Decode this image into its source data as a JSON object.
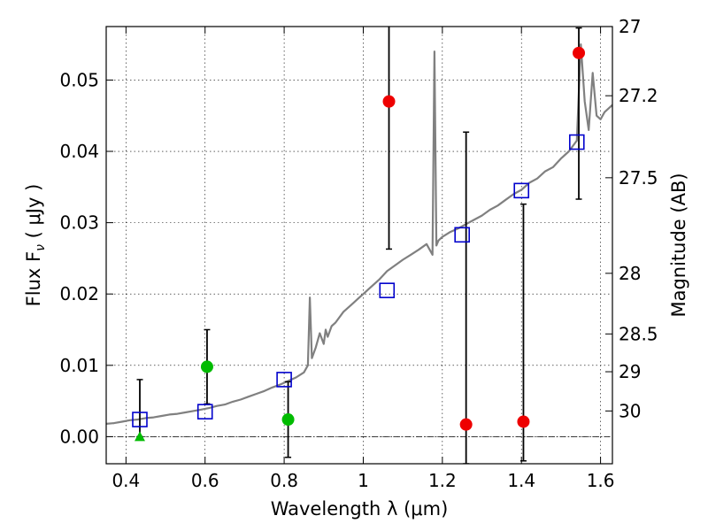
{
  "chart_data": {
    "type": "scatter",
    "xlabel": "Wavelength  λ (μm)",
    "ylabel": "Flux  F",
    "ylabel_sub": "ν",
    "ylabel_unit": " ( μJy )",
    "y2label": "Magnitude (AB)",
    "xlim": [
      0.35,
      1.63
    ],
    "ylim": [
      -0.0038,
      0.0575
    ],
    "grid": true,
    "x_ticks": [
      0.4,
      0.6,
      0.8,
      1.0,
      1.2,
      1.4,
      1.6
    ],
    "x_tick_labels": [
      "0.4",
      "0.6",
      "0.8",
      "1",
      "1.2",
      "1.4",
      "1.6"
    ],
    "y_ticks": [
      0.0,
      0.01,
      0.02,
      0.03,
      0.04,
      0.05
    ],
    "y_tick_labels": [
      "0.00",
      "0.01",
      "0.02",
      "0.03",
      "0.04",
      "0.05"
    ],
    "y2_ticks": [
      {
        "label": "27",
        "flux": 0.0575
      },
      {
        "label": "27.2",
        "flux": 0.0478
      },
      {
        "label": "27.5",
        "flux": 0.0363
      },
      {
        "label": "28",
        "flux": 0.0229
      },
      {
        "label": "28.5",
        "flux": 0.0144
      },
      {
        "label": "29",
        "flux": 0.0091
      },
      {
        "label": "30",
        "flux": 0.0036
      }
    ],
    "series": [
      {
        "kind": "model_spectrum",
        "color": "#808080",
        "x": [
          0.35,
          0.37,
          0.39,
          0.41,
          0.43,
          0.45,
          0.47,
          0.49,
          0.51,
          0.53,
          0.55,
          0.57,
          0.59,
          0.61,
          0.63,
          0.65,
          0.67,
          0.69,
          0.71,
          0.73,
          0.75,
          0.77,
          0.79,
          0.81,
          0.83,
          0.85,
          0.86,
          0.865,
          0.87,
          0.88,
          0.89,
          0.9,
          0.905,
          0.91,
          0.92,
          0.93,
          0.95,
          0.97,
          0.99,
          1.0,
          1.02,
          1.04,
          1.06,
          1.08,
          1.1,
          1.12,
          1.14,
          1.16,
          1.175,
          1.18,
          1.185,
          1.19,
          1.2,
          1.22,
          1.24,
          1.26,
          1.28,
          1.3,
          1.32,
          1.34,
          1.36,
          1.38,
          1.4,
          1.42,
          1.44,
          1.46,
          1.48,
          1.5,
          1.52,
          1.54,
          1.55,
          1.56,
          1.57,
          1.58,
          1.59,
          1.6,
          1.61,
          1.62,
          1.63
        ],
        "y": [
          0.0018,
          0.0019,
          0.0021,
          0.0023,
          0.0024,
          0.0026,
          0.0027,
          0.0029,
          0.0031,
          0.0032,
          0.0034,
          0.0036,
          0.0038,
          0.004,
          0.0043,
          0.0045,
          0.0049,
          0.0052,
          0.0056,
          0.006,
          0.0064,
          0.0069,
          0.0073,
          0.0078,
          0.0083,
          0.009,
          0.01,
          0.0195,
          0.011,
          0.0125,
          0.0145,
          0.013,
          0.015,
          0.014,
          0.0155,
          0.016,
          0.0175,
          0.0185,
          0.0195,
          0.02,
          0.021,
          0.022,
          0.0232,
          0.024,
          0.0248,
          0.0255,
          0.0262,
          0.027,
          0.0255,
          0.054,
          0.0268,
          0.0275,
          0.028,
          0.0287,
          0.0292,
          0.0298,
          0.0304,
          0.031,
          0.0318,
          0.0324,
          0.0332,
          0.034,
          0.0346,
          0.0356,
          0.0362,
          0.0372,
          0.0378,
          0.039,
          0.04,
          0.0415,
          0.055,
          0.047,
          0.043,
          0.051,
          0.045,
          0.0445,
          0.0455,
          0.046,
          0.0465
        ]
      },
      {
        "kind": "model_points",
        "marker": "open-square",
        "color": "#0000cc",
        "x": [
          0.435,
          0.6,
          0.8,
          1.06,
          1.25,
          1.4,
          1.54
        ],
        "y": [
          0.0024,
          0.0035,
          0.008,
          0.0205,
          0.0283,
          0.0345,
          0.0413
        ]
      },
      {
        "kind": "detections",
        "marker": "circle",
        "color": "#00bb00",
        "x": [
          0.605,
          0.81
        ],
        "y": [
          0.0098,
          0.0024
        ],
        "err_low": [
          0.0052,
          0.0053
        ],
        "err_high": [
          0.0052,
          0.0053
        ]
      },
      {
        "kind": "upper_limit",
        "marker": "triangle",
        "color": "#00bb00",
        "x": [
          0.435
        ],
        "y": [
          0.0
        ],
        "err_low": [
          0.0
        ],
        "err_high": [
          0.008
        ]
      },
      {
        "kind": "low_significance",
        "marker": "circle",
        "color": "#ee0000",
        "x": [
          1.065,
          1.26,
          1.405,
          1.545
        ],
        "y": [
          0.047,
          0.0017,
          0.0021,
          0.0538
        ],
        "err_low": [
          0.0207,
          0.0055,
          0.0055,
          0.0205
        ],
        "err_high": [
          0.0125,
          0.041,
          0.0305,
          0.0035
        ]
      }
    ]
  }
}
